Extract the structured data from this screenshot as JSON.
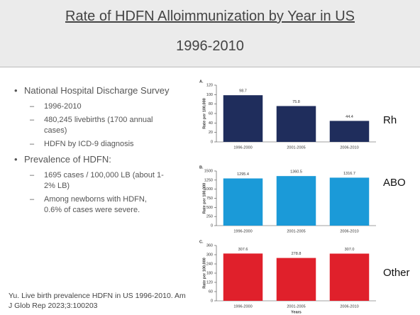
{
  "header": {
    "title": "Rate of HDFN Alloimmunization by Year in US",
    "subtitle": "1996-2010"
  },
  "bullets": [
    {
      "text": "National Hospital Discharge Survey",
      "items": [
        "1996-2010",
        "480,245 livebirths (1700 annual cases)",
        "HDFN by ICD-9 diagnosis"
      ]
    },
    {
      "text": "Prevalence of HDFN:",
      "items": [
        "1695 cases / 100,000 LB (about 1-2% LB)",
        "Among newborns with HDFN, 0.6% of cases were severe."
      ]
    }
  ],
  "citation": "Yu. Live birth prevalence HDFN in US 1996-2010. Am J Glob Rep 2023;3:100203",
  "chart_data": [
    {
      "type": "bar",
      "label": "A.",
      "annotation": "Rh",
      "ylabel": "Rate per 100,000",
      "categories": [
        "1996-2000",
        "2001-2005",
        "2006-2010"
      ],
      "values": [
        98.7,
        75.8,
        44.4
      ],
      "color": "#1f2d5c",
      "ylim": [
        0,
        120
      ],
      "yticks": [
        0,
        20,
        40,
        60,
        80,
        100,
        120
      ]
    },
    {
      "type": "bar",
      "label": "B.",
      "annotation": "ABO",
      "ylabel": "Rate per 100,000",
      "categories": [
        "1996-2000",
        "2001-2005",
        "2006-2010"
      ],
      "values": [
        1295.4,
        1360.5,
        1316.7
      ],
      "color": "#1b9ad8",
      "ylim": [
        0,
        1500
      ],
      "yticks": [
        0,
        250,
        500,
        750,
        1000,
        1250,
        1500
      ]
    },
    {
      "type": "bar",
      "label": "C.",
      "annotation": "Other",
      "ylabel": "Rate per 100,000",
      "xlabel": "Years",
      "categories": [
        "1996-2000",
        "2001-2005",
        "2006-2010"
      ],
      "values": [
        307.6,
        278.8,
        307.0
      ],
      "value_labels": [
        "307.6",
        "278.8",
        "307.0"
      ],
      "color": "#e0202b",
      "ylim": [
        0,
        360
      ],
      "yticks": [
        0,
        60,
        120,
        180,
        240,
        300,
        360
      ]
    }
  ]
}
